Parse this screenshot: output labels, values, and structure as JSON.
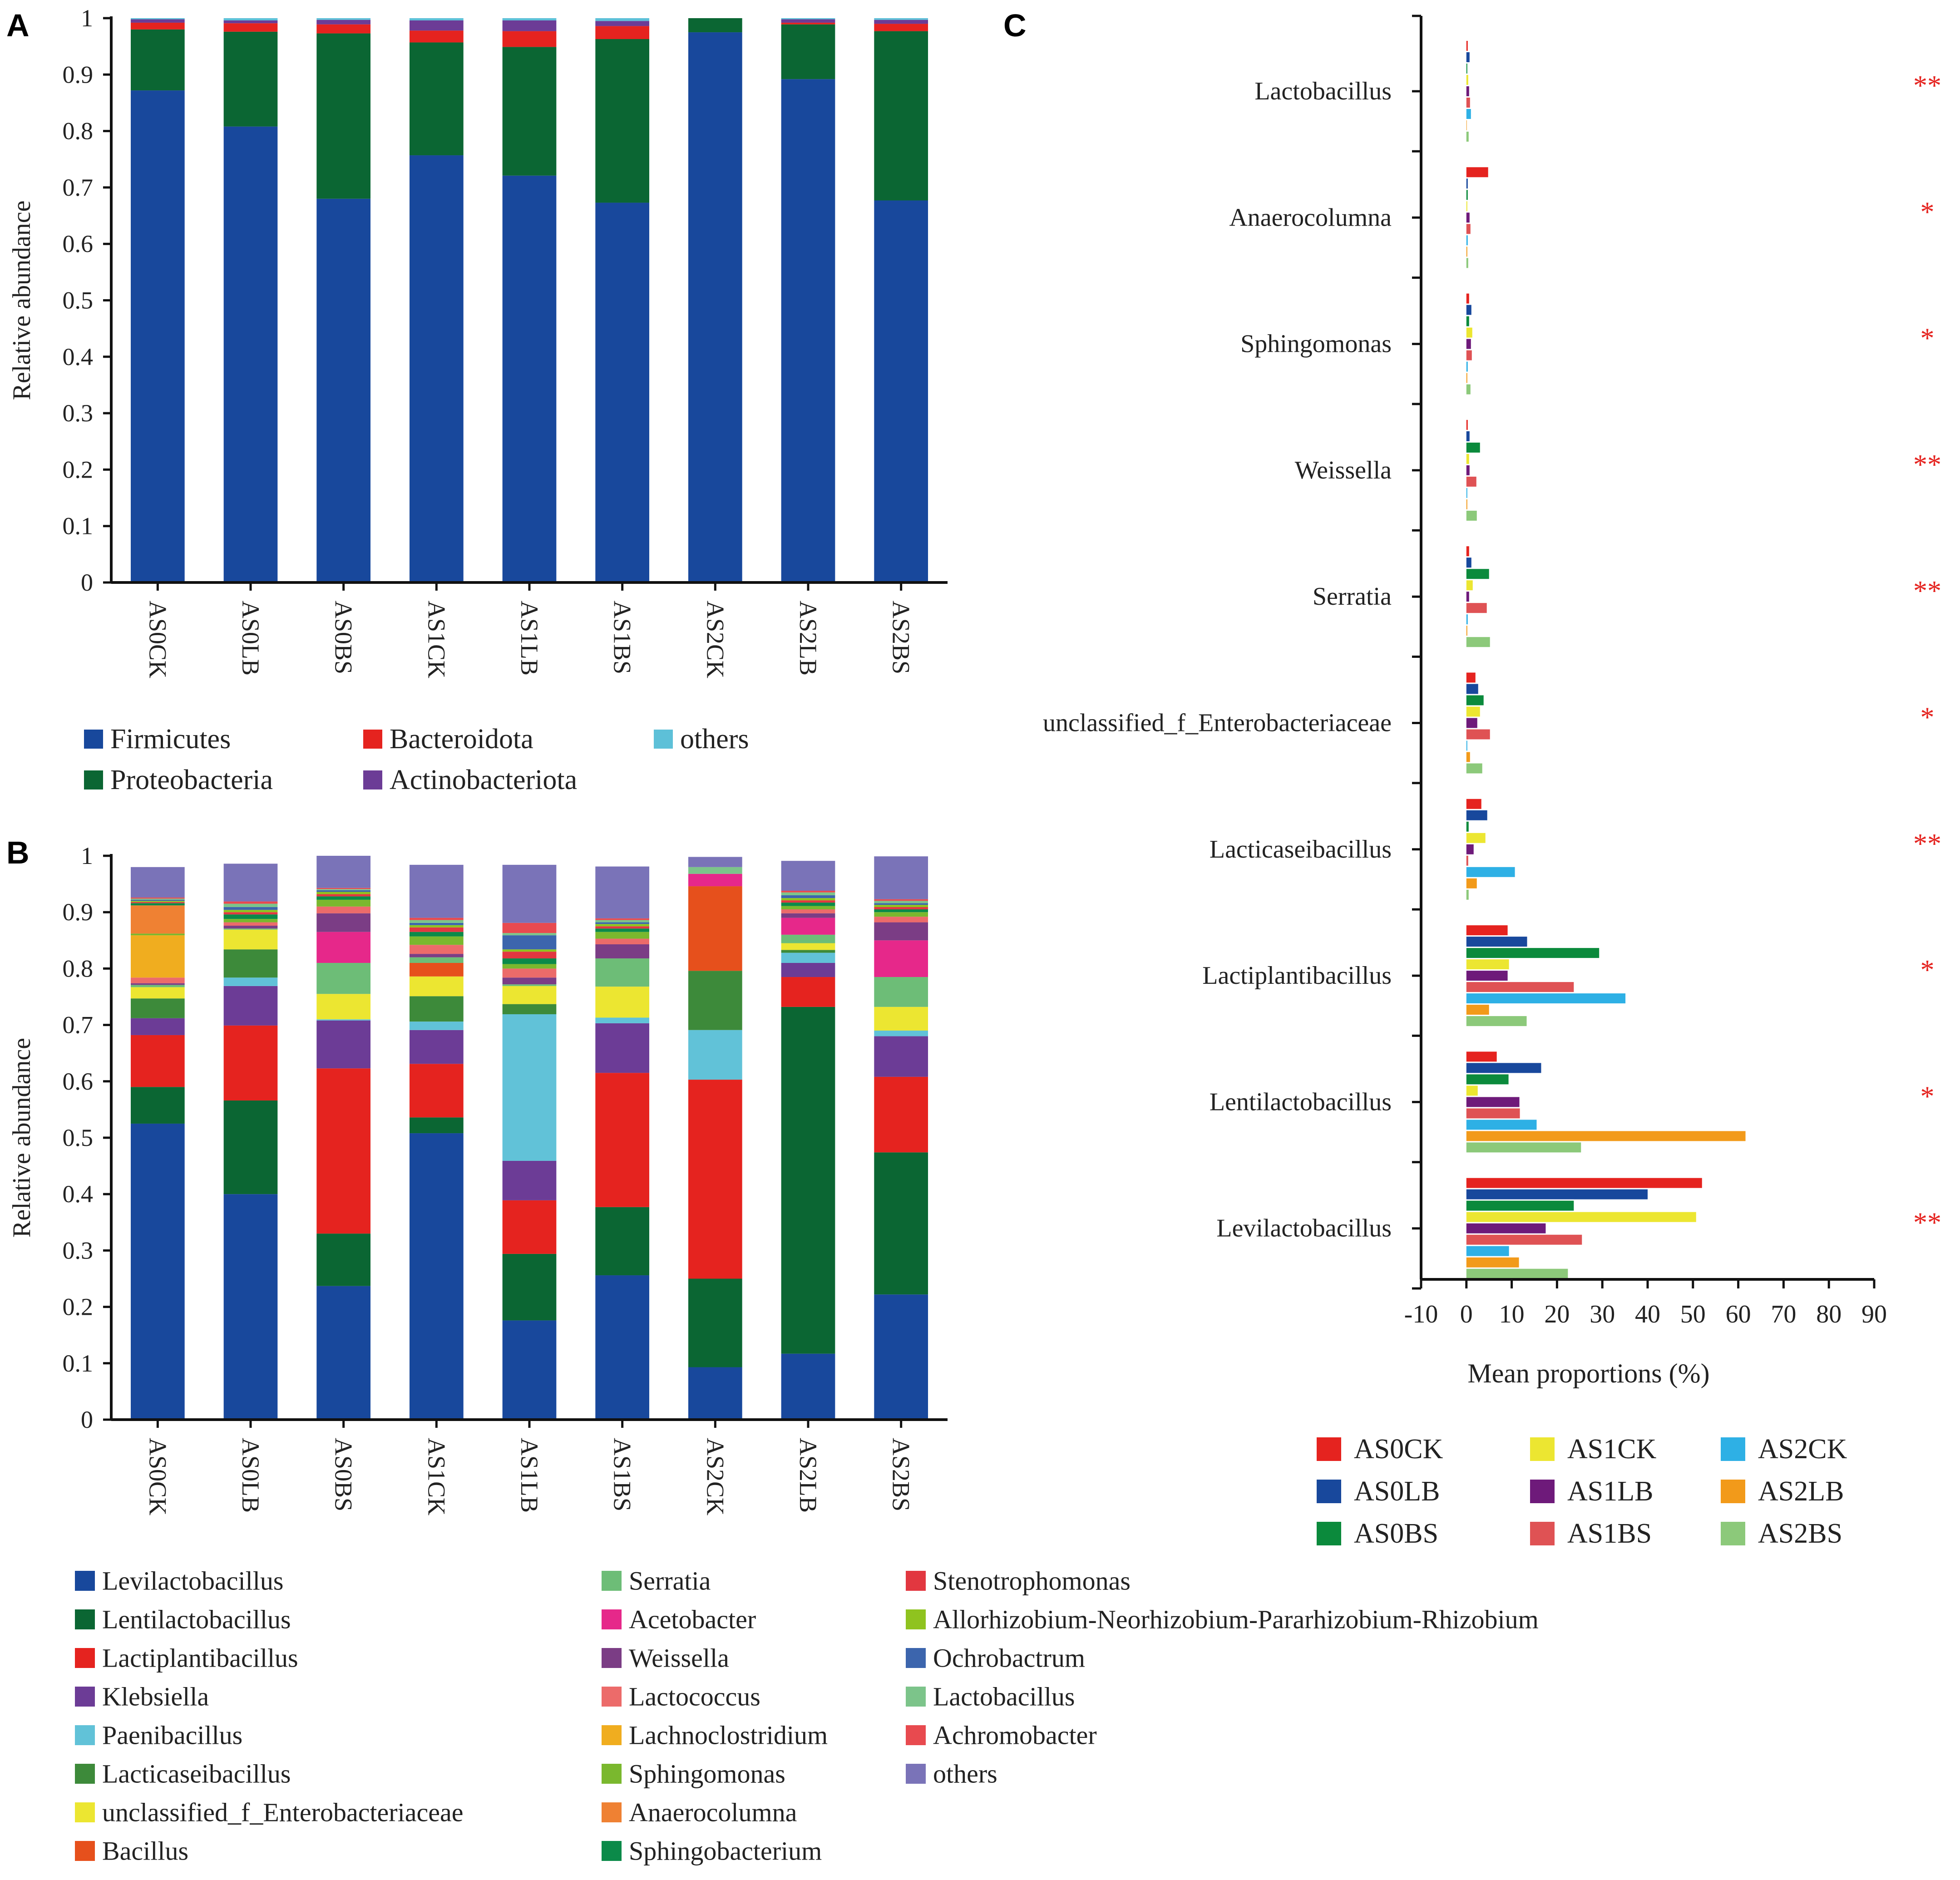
{
  "colors": {
    "phylum": {
      "Firmicutes": "#18489c",
      "Proteobacteria": "#0b6633",
      "Bacteroidota": "#e5231f",
      "Actinobacteriota": "#6c3c96",
      "others": "#5dc0d8"
    },
    "genus": {
      "Levilactobacillus": "#18489c",
      "Lentilactobacillus": "#0b6633",
      "Lactiplantibacillus": "#e5231f",
      "Klebsiella": "#6c3c96",
      "Paenibacillus": "#61c2d8",
      "Lacticaseibacillus": "#3d8a3a",
      "unclassified_f_Enterobacteriaceae": "#ece631",
      "Bacillus": "#e6501c",
      "Serratia": "#6dbd77",
      "Acetobacter": "#e6288a",
      "Weissella": "#7b3d85",
      "Lactococcus": "#ec6b6a",
      "Lachnoclostridium": "#f0ad1f",
      "Sphingomonas": "#7ab82e",
      "Anaerocolumna": "#ef8133",
      "Sphingobacterium": "#0b8a49",
      "Stenotrophomonas": "#e23740",
      "Allorhizobium-Neorhizobium-Pararhizobium-Rhizobium": "#8fc31f",
      "Ochrobactrum": "#3c65ad",
      "Lactobacillus": "#7cc48a",
      "Achromobacter": "#e84a4f",
      "others": "#7a73b8"
    },
    "groups": {
      "AS0CK": "#e5231f",
      "AS0LB": "#18489c",
      "AS0BS": "#0b8a3c",
      "AS1CK": "#ece631",
      "AS1LB": "#6e1a7a",
      "AS1BS": "#df5254",
      "AS2CK": "#2eb0e5",
      "AS2LB": "#f29a1a",
      "AS2BS": "#8cc97a"
    },
    "significance": "#e5231f"
  },
  "chart_data": [
    {
      "panel": "A",
      "type": "bar",
      "stacked": true,
      "ylabel": "Relative abundance",
      "ylim": [
        0,
        1
      ],
      "yticks": [
        "0",
        "0.1",
        "0.2",
        "0.3",
        "0.4",
        "0.5",
        "0.6",
        "0.7",
        "0.8",
        "0.9",
        "1"
      ],
      "categories": [
        "AS0CK",
        "AS0LB",
        "AS0BS",
        "AS1CK",
        "AS1LB",
        "AS1BS",
        "AS2CK",
        "AS2LB",
        "AS2BS"
      ],
      "series": [
        {
          "name": "Firmicutes",
          "values": [
            0.872,
            0.808,
            0.68,
            0.757,
            0.721,
            0.673,
            0.975,
            0.892,
            0.677
          ]
        },
        {
          "name": "Proteobacteria",
          "values": [
            0.108,
            0.168,
            0.293,
            0.2,
            0.228,
            0.29,
            0.025,
            0.097,
            0.3
          ]
        },
        {
          "name": "Bacteroidota",
          "values": [
            0.012,
            0.015,
            0.016,
            0.021,
            0.028,
            0.023,
            0.0,
            0.003,
            0.013
          ]
        },
        {
          "name": "Actinobacteriota",
          "values": [
            0.006,
            0.005,
            0.008,
            0.018,
            0.019,
            0.009,
            0.0,
            0.006,
            0.007
          ]
        },
        {
          "name": "others",
          "values": [
            0.002,
            0.004,
            0.003,
            0.004,
            0.004,
            0.005,
            0.0,
            0.002,
            0.003
          ]
        }
      ],
      "legend": [
        "Firmicutes",
        "Bacteroidota",
        "others",
        "Proteobacteria",
        "Actinobacteriota"
      ]
    },
    {
      "panel": "B",
      "type": "bar",
      "stacked": true,
      "ylabel": "Relative abundance",
      "ylim": [
        0,
        1
      ],
      "yticks": [
        "0",
        "0.1",
        "0.2",
        "0.3",
        "0.4",
        "0.5",
        "0.6",
        "0.7",
        "0.8",
        "0.9",
        "1"
      ],
      "categories": [
        "AS0CK",
        "AS0LB",
        "AS0BS",
        "AS1CK",
        "AS1LB",
        "AS1BS",
        "AS2CK",
        "AS2LB",
        "AS2BS"
      ],
      "series": [
        {
          "name": "Levilactobacillus",
          "values": [
            0.525,
            0.4,
            0.237,
            0.508,
            0.176,
            0.256,
            0.093,
            0.117,
            0.222
          ]
        },
        {
          "name": "Lentilactobacillus",
          "values": [
            0.065,
            0.166,
            0.093,
            0.028,
            0.118,
            0.121,
            0.157,
            0.615,
            0.252
          ]
        },
        {
          "name": "Lactiplantibacillus",
          "values": [
            0.092,
            0.133,
            0.293,
            0.095,
            0.095,
            0.238,
            0.353,
            0.053,
            0.134
          ]
        },
        {
          "name": "Klebsiella",
          "values": [
            0.03,
            0.07,
            0.085,
            0.06,
            0.07,
            0.088,
            0.0,
            0.025,
            0.072
          ]
        },
        {
          "name": "Paenibacillus",
          "values": [
            0.0,
            0.015,
            0.002,
            0.015,
            0.26,
            0.01,
            0.088,
            0.018,
            0.01
          ]
        },
        {
          "name": "Lacticaseibacillus",
          "values": [
            0.035,
            0.05,
            0.0,
            0.045,
            0.018,
            0.0,
            0.105,
            0.005,
            0.0
          ]
        },
        {
          "name": "unclassified_f_Enterobacteriaceae",
          "values": [
            0.02,
            0.035,
            0.045,
            0.035,
            0.032,
            0.055,
            0.0,
            0.012,
            0.042
          ]
        },
        {
          "name": "Bacillus",
          "values": [
            0.0,
            0.0,
            0.0,
            0.024,
            0.0,
            0.0,
            0.15,
            0.0,
            0.0
          ]
        },
        {
          "name": "Serratia",
          "values": [
            0.004,
            0.002,
            0.055,
            0.01,
            0.003,
            0.05,
            0.0,
            0.015,
            0.053
          ]
        },
        {
          "name": "Acetobacter",
          "values": [
            0.0,
            0.0,
            0.055,
            0.0,
            0.0,
            0.0,
            0.022,
            0.03,
            0.065
          ]
        },
        {
          "name": "Weissella",
          "values": [
            0.003,
            0.005,
            0.033,
            0.006,
            0.012,
            0.025,
            0.0,
            0.008,
            0.032
          ]
        },
        {
          "name": "Lactococcus",
          "values": [
            0.01,
            0.006,
            0.012,
            0.016,
            0.016,
            0.01,
            0.0,
            0.007,
            0.01
          ]
        },
        {
          "name": "Lachnoclostridium",
          "values": [
            0.075,
            0.0,
            0.0,
            0.0,
            0.0,
            0.0,
            0.0,
            0.0,
            0.0
          ]
        },
        {
          "name": "Sphingomonas",
          "values": [
            0.003,
            0.006,
            0.012,
            0.015,
            0.008,
            0.012,
            0.0,
            0.006,
            0.008
          ]
        },
        {
          "name": "Anaerocolumna",
          "values": [
            0.05,
            0.0,
            0.0,
            0.0,
            0.0,
            0.0,
            0.0,
            0.0,
            0.0
          ]
        },
        {
          "name": "Sphingobacterium",
          "values": [
            0.004,
            0.008,
            0.006,
            0.008,
            0.01,
            0.006,
            0.0,
            0.006,
            0.005
          ]
        },
        {
          "name": "Stenotrophomonas",
          "values": [
            0.002,
            0.004,
            0.004,
            0.008,
            0.012,
            0.004,
            0.0,
            0.004,
            0.004
          ]
        },
        {
          "name": "Allorhizobium-Neorhizobium-Pararhizobium-Rhizobium",
          "values": [
            0.002,
            0.004,
            0.004,
            0.004,
            0.004,
            0.004,
            0.0,
            0.004,
            0.004
          ]
        },
        {
          "name": "Ochrobactrum",
          "values": [
            0.002,
            0.005,
            0.003,
            0.004,
            0.025,
            0.003,
            0.0,
            0.005,
            0.003
          ]
        },
        {
          "name": "Lactobacillus",
          "values": [
            0.002,
            0.006,
            0.002,
            0.005,
            0.004,
            0.004,
            0.012,
            0.005,
            0.004
          ]
        },
        {
          "name": "Achromobacter",
          "values": [
            0.002,
            0.004,
            0.002,
            0.004,
            0.018,
            0.003,
            0.0,
            0.003,
            0.003
          ]
        },
        {
          "name": "others",
          "values": [
            0.054,
            0.067,
            0.064,
            0.094,
            0.103,
            0.092,
            0.018,
            0.053,
            0.076
          ]
        }
      ],
      "legend": [
        "Levilactobacillus",
        "Lentilactobacillus",
        "Lactiplantibacillus",
        "Klebsiella",
        "Paenibacillus",
        "Lacticaseibacillus",
        "unclassified_f_Enterobacteriaceae",
        "Bacillus",
        "Serratia",
        "Acetobacter",
        "Weissella",
        "Lactococcus",
        "Lachnoclostridium",
        "Sphingomonas",
        "Anaerocolumna",
        "Sphingobacterium",
        "Stenotrophomonas",
        "Allorhizobium-Neorhizobium-Pararhizobium-Rhizobium",
        "Ochrobactrum",
        "Lactobacillus",
        "Achromobacter",
        "others"
      ]
    },
    {
      "panel": "C",
      "type": "bar",
      "orientation": "horizontal",
      "xlabel": "Mean proportions (%)",
      "xlim": [
        -10,
        90
      ],
      "xticks": [
        "-10",
        "0",
        "10",
        "20",
        "30",
        "40",
        "50",
        "60",
        "70",
        "80",
        "90"
      ],
      "groups": [
        "AS0CK",
        "AS0LB",
        "AS0BS",
        "AS1CK",
        "AS1LB",
        "AS1BS",
        "AS2CK",
        "AS2LB",
        "AS2BS"
      ],
      "categories": [
        "Lactobacillus",
        "Anaerocolumna",
        "Sphingomonas",
        "Weissella",
        "Serratia",
        "unclassified_f_Enterobacteriaceae",
        "Lacticaseibacillus",
        "Lactiplantibacillus",
        "Lentilactobacillus",
        "Levilactobacillus"
      ],
      "significance": [
        "**",
        "*",
        "*",
        "**",
        "**",
        "*",
        "**",
        "*",
        "*",
        "**"
      ],
      "series": [
        {
          "name": "AS0CK",
          "values": [
            0.3,
            4.8,
            0.6,
            0.3,
            0.6,
            2.0,
            3.3,
            9.1,
            6.7,
            52.0
          ]
        },
        {
          "name": "AS0LB",
          "values": [
            0.7,
            0.3,
            1.1,
            0.7,
            1.1,
            2.6,
            4.6,
            13.4,
            16.5,
            40.0
          ]
        },
        {
          "name": "AS0BS",
          "values": [
            0.2,
            0.3,
            0.6,
            3.0,
            5.0,
            3.8,
            0.5,
            29.3,
            9.3,
            23.7
          ]
        },
        {
          "name": "AS1CK",
          "values": [
            0.4,
            0.2,
            1.3,
            0.6,
            1.4,
            3.0,
            4.2,
            9.4,
            2.5,
            50.7
          ]
        },
        {
          "name": "AS1LB",
          "values": [
            0.6,
            0.7,
            1.0,
            0.7,
            0.6,
            2.4,
            1.6,
            9.1,
            11.7,
            17.5
          ]
        },
        {
          "name": "AS1BS",
          "values": [
            0.8,
            0.9,
            1.2,
            2.2,
            4.5,
            5.2,
            0.4,
            23.7,
            11.8,
            25.5
          ]
        },
        {
          "name": "AS2CK",
          "values": [
            1.0,
            0.3,
            0.3,
            0.2,
            0.3,
            0.2,
            10.7,
            35.1,
            15.5,
            9.4
          ]
        },
        {
          "name": "AS2LB",
          "values": [
            0.1,
            0.2,
            0.2,
            0.2,
            0.2,
            0.8,
            2.3,
            5.0,
            61.6,
            11.6
          ]
        },
        {
          "name": "AS2BS",
          "values": [
            0.5,
            0.4,
            0.9,
            2.3,
            5.2,
            3.5,
            0.5,
            13.3,
            25.3,
            22.4
          ]
        }
      ],
      "legend": [
        "AS0CK",
        "AS1CK",
        "AS2CK",
        "AS0LB",
        "AS1LB",
        "AS2LB",
        "AS0BS",
        "AS1BS",
        "AS2BS"
      ]
    }
  ],
  "panels": {
    "a_letter": "A",
    "b_letter": "B",
    "c_letter": "C"
  }
}
